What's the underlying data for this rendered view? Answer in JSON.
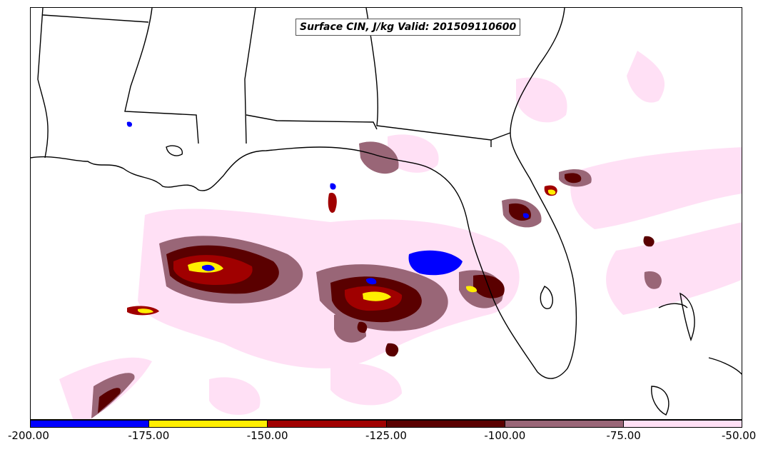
{
  "map": {
    "title": "Surface CIN, J/kg Valid: 201509110600",
    "region": "Gulf of Mexico / Southeastern US"
  },
  "colorbar": {
    "ticks": [
      "-200.00",
      "-175.00",
      "-150.00",
      "-125.00",
      "-100.00",
      "-75.00",
      "-50.00"
    ],
    "bins": [
      {
        "range": [
          -200,
          -175
        ],
        "color": "#0000ff"
      },
      {
        "range": [
          -175,
          -150
        ],
        "color": "#ffee00"
      },
      {
        "range": [
          -150,
          -125
        ],
        "color": "#a00000"
      },
      {
        "range": [
          -125,
          -100
        ],
        "color": "#5a0000"
      },
      {
        "range": [
          -100,
          -75
        ],
        "color": "#996677"
      },
      {
        "range": [
          -75,
          -50
        ],
        "color": "#ffe0f5"
      }
    ]
  }
}
